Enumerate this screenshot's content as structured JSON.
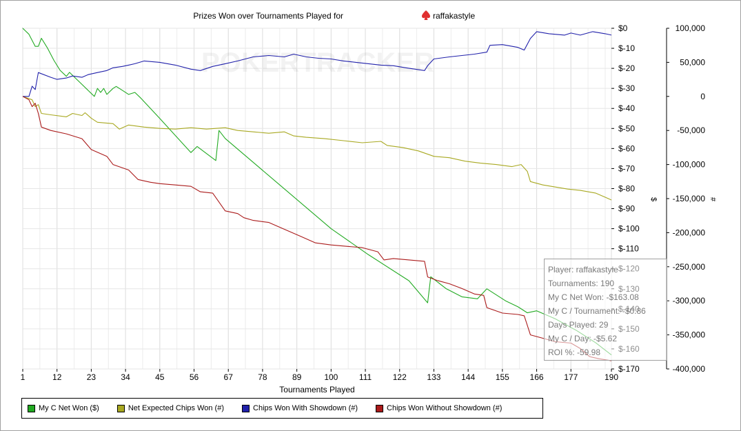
{
  "chart_data": {
    "type": "line",
    "title": "Prizes Won over Tournaments Played for",
    "player": "raffakastyle",
    "xlabel": "Tournaments Played",
    "ylabel_left": "$",
    "ylabel_right": "#",
    "watermark": "POKERTRACKER",
    "x_ticks": [
      1,
      12,
      23,
      34,
      45,
      56,
      67,
      78,
      89,
      100,
      111,
      122,
      133,
      144,
      155,
      166,
      177,
      190
    ],
    "x_range": [
      1,
      190
    ],
    "y_left_range": [
      -170,
      0
    ],
    "y_left_ticks": [
      "$0",
      "$-10",
      "$-20",
      "$-30",
      "$-40",
      "$-50",
      "$-60",
      "$-70",
      "$-80",
      "$-90",
      "$-100",
      "$-110",
      "$-120",
      "$-130",
      "$-140",
      "$-150",
      "$-160",
      "$-170"
    ],
    "y_right_range": [
      -400000,
      100000
    ],
    "y_right_ticks": [
      "100,000",
      "50,000",
      "0",
      "-50,000",
      "-100,000",
      "-150,000",
      "-200,000",
      "-250,000",
      "-300,000",
      "-350,000",
      "-400,000"
    ],
    "series": [
      {
        "name": "My C Net Won ($)",
        "axis": "left",
        "color": "#22aa22",
        "points": [
          [
            1,
            0
          ],
          [
            3,
            -3
          ],
          [
            5,
            -9
          ],
          [
            6,
            -9
          ],
          [
            7,
            -5
          ],
          [
            9,
            -10
          ],
          [
            11,
            -16
          ],
          [
            13,
            -21
          ],
          [
            15,
            -24
          ],
          [
            16,
            -22
          ],
          [
            18,
            -25
          ],
          [
            20,
            -28
          ],
          [
            22,
            -31
          ],
          [
            24,
            -34
          ],
          [
            25,
            -30
          ],
          [
            26,
            -32
          ],
          [
            27,
            -30
          ],
          [
            28,
            -33
          ],
          [
            30,
            -30
          ],
          [
            31,
            -29
          ],
          [
            33,
            -31
          ],
          [
            35,
            -33
          ],
          [
            37,
            -32
          ],
          [
            39,
            -35
          ],
          [
            45,
            -45
          ],
          [
            55,
            -62
          ],
          [
            57,
            -59
          ],
          [
            63,
            -66
          ],
          [
            64,
            -51
          ],
          [
            66,
            -55
          ],
          [
            100,
            -100
          ],
          [
            112,
            -113
          ],
          [
            125,
            -126
          ],
          [
            131,
            -137
          ],
          [
            132,
            -124
          ],
          [
            137,
            -130
          ],
          [
            142,
            -134
          ],
          [
            147,
            -135
          ],
          [
            150,
            -130
          ],
          [
            156,
            -136
          ],
          [
            160,
            -139
          ],
          [
            163,
            -142
          ],
          [
            166,
            -141
          ],
          [
            172,
            -145
          ],
          [
            179,
            -151
          ],
          [
            185,
            -157
          ],
          [
            190,
            -163
          ]
        ]
      },
      {
        "name": "Net Expected Chips Won (#)",
        "axis": "right",
        "color": "#a8a820",
        "points": [
          [
            1,
            0
          ],
          [
            4,
            -5000
          ],
          [
            5,
            -15000
          ],
          [
            6,
            -12000
          ],
          [
            7,
            -25000
          ],
          [
            10,
            -27000
          ],
          [
            15,
            -30000
          ],
          [
            17,
            -25000
          ],
          [
            20,
            -28000
          ],
          [
            21,
            -24000
          ],
          [
            23,
            -32000
          ],
          [
            25,
            -38000
          ],
          [
            30,
            -40000
          ],
          [
            32,
            -48000
          ],
          [
            35,
            -42000
          ],
          [
            40,
            -45000
          ],
          [
            45,
            -47000
          ],
          [
            50,
            -48000
          ],
          [
            55,
            -46000
          ],
          [
            60,
            -48000
          ],
          [
            66,
            -46000
          ],
          [
            70,
            -50000
          ],
          [
            75,
            -52000
          ],
          [
            80,
            -54000
          ],
          [
            85,
            -52000
          ],
          [
            88,
            -58000
          ],
          [
            92,
            -60000
          ],
          [
            98,
            -62000
          ],
          [
            104,
            -65000
          ],
          [
            110,
            -68000
          ],
          [
            116,
            -66000
          ],
          [
            118,
            -72000
          ],
          [
            123,
            -75000
          ],
          [
            128,
            -80000
          ],
          [
            133,
            -88000
          ],
          [
            138,
            -90000
          ],
          [
            143,
            -95000
          ],
          [
            148,
            -98000
          ],
          [
            153,
            -100000
          ],
          [
            158,
            -103000
          ],
          [
            161,
            -100000
          ],
          [
            163,
            -110000
          ],
          [
            164,
            -125000
          ],
          [
            168,
            -130000
          ],
          [
            172,
            -133000
          ],
          [
            176,
            -136000
          ],
          [
            180,
            -138000
          ],
          [
            185,
            -142000
          ],
          [
            188,
            -148000
          ],
          [
            190,
            -152000
          ]
        ]
      },
      {
        "name": "Chips Won With Showdown (#)",
        "axis": "right",
        "color": "#2020aa",
        "points": [
          [
            1,
            0
          ],
          [
            3,
            0
          ],
          [
            4,
            15000
          ],
          [
            5,
            10000
          ],
          [
            6,
            35000
          ],
          [
            10,
            28000
          ],
          [
            12,
            25000
          ],
          [
            15,
            27000
          ],
          [
            17,
            30000
          ],
          [
            20,
            28000
          ],
          [
            22,
            32000
          ],
          [
            25,
            35000
          ],
          [
            28,
            38000
          ],
          [
            30,
            42000
          ],
          [
            33,
            44000
          ],
          [
            35,
            46000
          ],
          [
            37,
            48000
          ],
          [
            40,
            52000
          ],
          [
            45,
            50000
          ],
          [
            50,
            46000
          ],
          [
            55,
            40000
          ],
          [
            58,
            38000
          ],
          [
            62,
            44000
          ],
          [
            66,
            48000
          ],
          [
            70,
            52000
          ],
          [
            75,
            58000
          ],
          [
            80,
            60000
          ],
          [
            85,
            58000
          ],
          [
            88,
            62000
          ],
          [
            92,
            58000
          ],
          [
            96,
            56000
          ],
          [
            100,
            55000
          ],
          [
            104,
            52000
          ],
          [
            108,
            50000
          ],
          [
            112,
            48000
          ],
          [
            116,
            46000
          ],
          [
            120,
            45000
          ],
          [
            124,
            42000
          ],
          [
            127,
            40000
          ],
          [
            130,
            38000
          ],
          [
            131,
            45000
          ],
          [
            133,
            55000
          ],
          [
            138,
            58000
          ],
          [
            142,
            60000
          ],
          [
            146,
            62000
          ],
          [
            150,
            65000
          ],
          [
            151,
            75000
          ],
          [
            155,
            76000
          ],
          [
            160,
            72000
          ],
          [
            162,
            68000
          ],
          [
            164,
            85000
          ],
          [
            166,
            95000
          ],
          [
            170,
            92000
          ],
          [
            175,
            90000
          ],
          [
            177,
            93000
          ],
          [
            180,
            90000
          ],
          [
            184,
            95000
          ],
          [
            188,
            92000
          ],
          [
            190,
            90000
          ]
        ]
      },
      {
        "name": "Chips Won Without Showdown (#)",
        "axis": "right",
        "color": "#aa1a1a",
        "points": [
          [
            1,
            0
          ],
          [
            3,
            -5000
          ],
          [
            4,
            -15000
          ],
          [
            5,
            -10000
          ],
          [
            6,
            -25000
          ],
          [
            7,
            -45000
          ],
          [
            10,
            -50000
          ],
          [
            15,
            -55000
          ],
          [
            20,
            -62000
          ],
          [
            23,
            -78000
          ],
          [
            28,
            -88000
          ],
          [
            30,
            -100000
          ],
          [
            35,
            -108000
          ],
          [
            38,
            -122000
          ],
          [
            42,
            -126000
          ],
          [
            45,
            -128000
          ],
          [
            50,
            -130000
          ],
          [
            55,
            -132000
          ],
          [
            58,
            -140000
          ],
          [
            62,
            -142000
          ],
          [
            66,
            -168000
          ],
          [
            70,
            -172000
          ],
          [
            72,
            -178000
          ],
          [
            75,
            -182000
          ],
          [
            80,
            -185000
          ],
          [
            85,
            -195000
          ],
          [
            90,
            -205000
          ],
          [
            95,
            -215000
          ],
          [
            100,
            -218000
          ],
          [
            105,
            -220000
          ],
          [
            110,
            -222000
          ],
          [
            115,
            -228000
          ],
          [
            117,
            -240000
          ],
          [
            120,
            -238000
          ],
          [
            125,
            -240000
          ],
          [
            130,
            -242000
          ],
          [
            131,
            -265000
          ],
          [
            134,
            -270000
          ],
          [
            138,
            -275000
          ],
          [
            142,
            -282000
          ],
          [
            146,
            -290000
          ],
          [
            149,
            -292000
          ],
          [
            150,
            -310000
          ],
          [
            155,
            -318000
          ],
          [
            160,
            -320000
          ],
          [
            162,
            -322000
          ],
          [
            164,
            -350000
          ],
          [
            168,
            -355000
          ],
          [
            172,
            -360000
          ],
          [
            177,
            -362000
          ],
          [
            180,
            -370000
          ],
          [
            183,
            -382000
          ],
          [
            186,
            -385000
          ],
          [
            190,
            -388000
          ]
        ]
      }
    ]
  },
  "tooltip": {
    "player": "Player: raffakastyle",
    "tournaments": "Tournaments: 190",
    "net_won": "My C Net Won: -$163.08",
    "per_tournament": "My C / Tournament: -$0.86",
    "days_played": "Days Played: 29",
    "per_day": "My C / Day: -$5.62",
    "roi": "ROI %: -59.98"
  },
  "legend": [
    {
      "label": "My C Net Won ($)",
      "color": "#22aa22"
    },
    {
      "label": "Net Expected Chips Won (#)",
      "color": "#a8a820"
    },
    {
      "label": "Chips Won With Showdown (#)",
      "color": "#2020aa"
    },
    {
      "label": "Chips Won Without Showdown (#)",
      "color": "#aa1a1a"
    }
  ]
}
